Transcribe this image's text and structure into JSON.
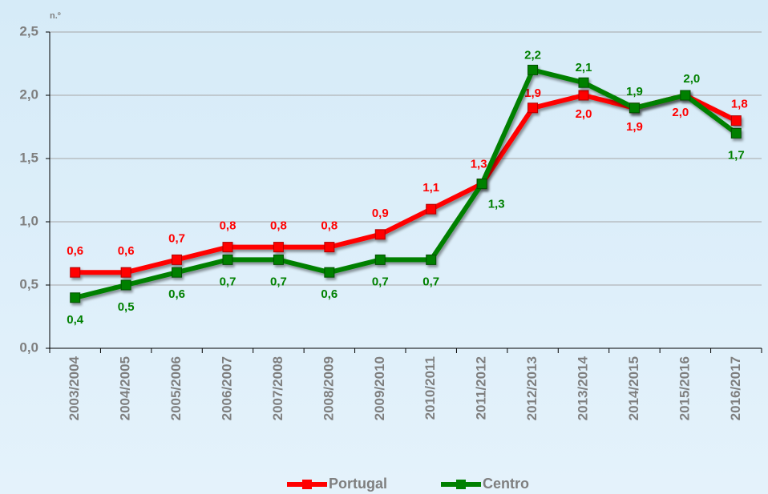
{
  "chart_data": {
    "type": "line",
    "y_label": "n.º",
    "categories": [
      "2003/2004",
      "2004/2005",
      "2005/2006",
      "2006/2007",
      "2007/2008",
      "2008/2009",
      "2009/2010",
      "2010/2011",
      "2011/2012",
      "2012/2013",
      "2013/2014",
      "2014/2015",
      "2015/2016",
      "2016/2017"
    ],
    "series": [
      {
        "name": "Portugal",
        "color": "#ff0000",
        "values": [
          0.6,
          0.6,
          0.7,
          0.8,
          0.8,
          0.8,
          0.9,
          1.1,
          1.3,
          1.9,
          2.0,
          1.9,
          2.0,
          1.8
        ],
        "value_labels": [
          "0,6",
          "0,6",
          "0,7",
          "0,8",
          "0,8",
          "0,8",
          "0,9",
          "1,1",
          "1,3",
          "1,9",
          "2,0",
          "1,9",
          "2,0",
          "1,8"
        ]
      },
      {
        "name": "Centro",
        "color": "#008000",
        "values": [
          0.4,
          0.5,
          0.6,
          0.7,
          0.7,
          0.6,
          0.7,
          0.7,
          1.3,
          2.2,
          2.1,
          1.9,
          2.0,
          1.7
        ],
        "value_labels": [
          "0,4",
          "0,5",
          "0,6",
          "0,7",
          "0,7",
          "0,6",
          "0,7",
          "0,7",
          "1,3",
          "2,2",
          "2,1",
          "1,9",
          "2,0",
          "1,7"
        ]
      }
    ],
    "ylim": [
      0,
      2.5
    ],
    "yticks": [
      {
        "value": 0,
        "label": "0,0"
      },
      {
        "value": 0.5,
        "label": "0,5"
      },
      {
        "value": 1,
        "label": "1,0"
      },
      {
        "value": 1.5,
        "label": "1,5"
      },
      {
        "value": 2,
        "label": "2,0"
      },
      {
        "value": 2.5,
        "label": "2,5"
      }
    ],
    "grid": true,
    "legend": "bottom"
  }
}
